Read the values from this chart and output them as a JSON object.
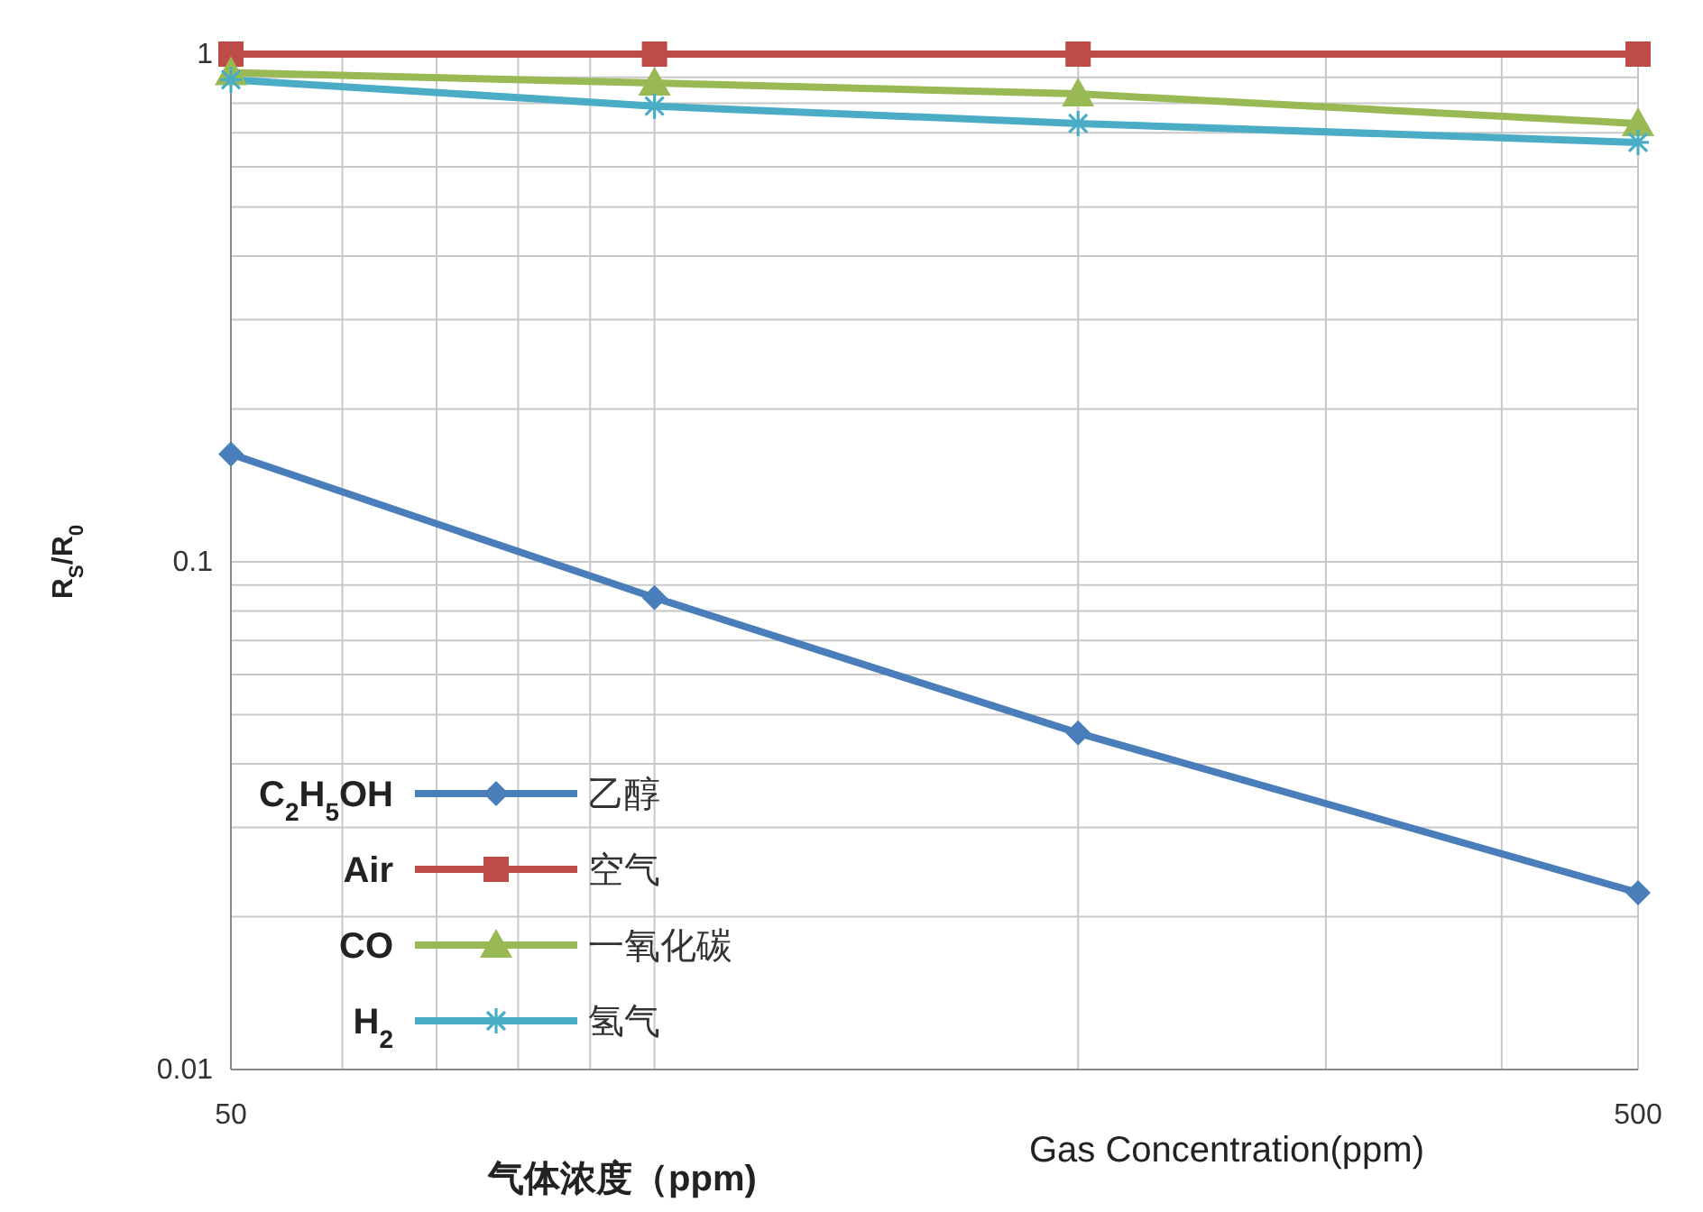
{
  "chart_data": {
    "type": "line",
    "xlabel": "气体浓度（ppm)",
    "ylabel": "R$_{S}$/R$_{0}$",
    "annotations": [
      "Gas Concentration(ppm)",
      "C$_{2}$H$_{5}$OH",
      "Air",
      "CO",
      "H$_{2}$"
    ],
    "x": [
      50,
      100,
      200,
      500
    ],
    "series": [
      {
        "name": "乙醇",
        "color": "#4a7ebb",
        "marker": "diamond",
        "values": [
          0.163,
          0.085,
          0.046,
          0.0223
        ]
      },
      {
        "name": "空气",
        "color": "#be4b48",
        "marker": "square",
        "values": [
          1,
          1,
          1,
          1
        ]
      },
      {
        "name": "一氧化碳",
        "color": "#98b954",
        "marker": "triangle",
        "values": [
          0.92,
          0.877,
          0.835,
          0.73
        ]
      },
      {
        "name": "氢气",
        "color": "#4bacc6",
        "marker": "cross",
        "values": [
          0.89,
          0.79,
          0.73,
          0.67
        ]
      }
    ],
    "log": "xy",
    "xlim": [
      50,
      500
    ],
    "ylim": [
      0.01,
      1
    ],
    "xticks": [
      50,
      {
        "value": 60,
        "label": null
      },
      {
        "value": 70,
        "label": null
      },
      {
        "value": 80,
        "label": null
      },
      {
        "value": 90,
        "label": null
      },
      {
        "value": 100,
        "label": null
      },
      {
        "value": 200,
        "label": null
      },
      {
        "value": 300,
        "label": null
      },
      {
        "value": 400,
        "label": null
      },
      500
    ],
    "yticks": [
      0.01,
      {
        "value": 0.02,
        "label": null
      },
      {
        "value": 0.03,
        "label": null
      },
      {
        "value": 0.04,
        "label": null
      },
      {
        "value": 0.05,
        "label": null
      },
      {
        "value": 0.06,
        "label": null
      },
      {
        "value": 0.07,
        "label": null
      },
      {
        "value": 0.08,
        "label": null
      },
      {
        "value": 0.09,
        "label": null
      },
      0.1,
      {
        "value": 0.2,
        "label": null
      },
      {
        "value": 0.3,
        "label": null
      },
      {
        "value": 0.4,
        "label": null
      },
      {
        "value": 0.5,
        "label": null
      },
      {
        "value": 0.6,
        "label": null
      },
      {
        "value": 0.7,
        "label": null
      },
      {
        "value": 0.8,
        "label": null
      },
      {
        "value": 0.9,
        "label": null
      },
      1
    ],
    "grid": true,
    "legend": "bottom left"
  }
}
